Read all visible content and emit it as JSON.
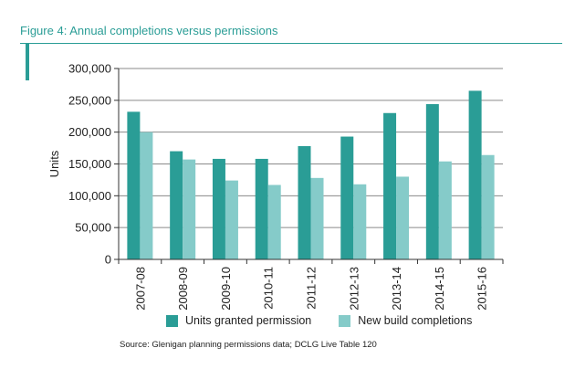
{
  "figure": {
    "title": "Figure 4: Annual completions versus permissions",
    "source": "Source: Glenigan planning permissions data; DCLG Live Table 120"
  },
  "colors": {
    "accent": "#2a9d96",
    "series1": "#2a9d96",
    "series2": "#85cbc9",
    "grid": "#8a8a8a"
  },
  "chart_data": {
    "type": "bar",
    "title": "",
    "xlabel": "",
    "ylabel": "Units",
    "ylim": [
      0,
      300000
    ],
    "yticks": [
      "0",
      "50,000",
      "100,000",
      "150,000",
      "200,000",
      "250,000",
      "300,000"
    ],
    "ytick_values": [
      0,
      50000,
      100000,
      150000,
      200000,
      250000,
      300000
    ],
    "grid": true,
    "legend": "bottom",
    "categories": [
      "2007-08",
      "2008-09",
      "2009-10",
      "2010-11",
      "2011-12",
      "2012-13",
      "2013-14",
      "2014-15",
      "2015-16"
    ],
    "series": [
      {
        "name": "Units granted permission",
        "values": [
          232000,
          170000,
          158000,
          158000,
          178000,
          193000,
          230000,
          244000,
          265000
        ]
      },
      {
        "name": "New build completions",
        "values": [
          200000,
          157000,
          124000,
          117000,
          128000,
          118000,
          130000,
          154000,
          164000
        ]
      }
    ]
  }
}
